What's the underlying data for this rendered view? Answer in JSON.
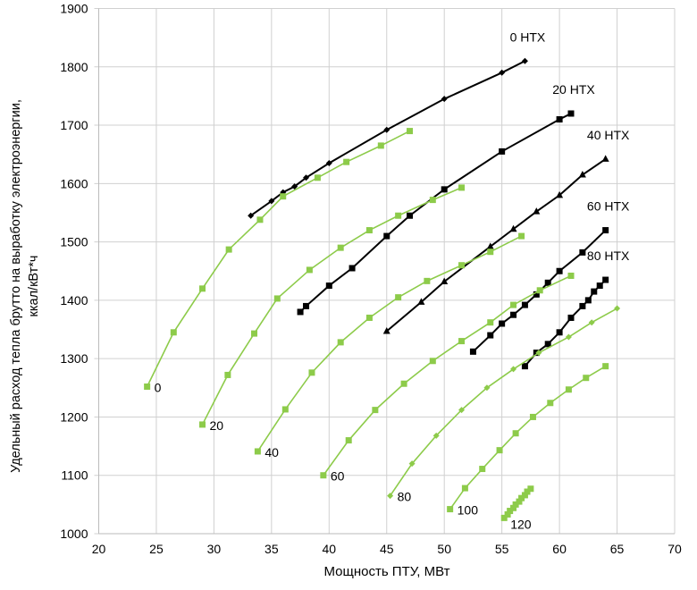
{
  "chart_data": {
    "type": "line",
    "xlabel": "Мощность ПТУ, МВт",
    "ylabel_lines": [
      "Удельный расход тепла брутто на выработку электроэнергии,",
      "ккал/кВт*ч"
    ],
    "xlim": [
      20,
      70
    ],
    "ylim": [
      1000,
      1900
    ],
    "xticks": [
      20,
      25,
      30,
      35,
      40,
      45,
      50,
      55,
      60,
      65,
      70
    ],
    "yticks": [
      1000,
      1100,
      1200,
      1300,
      1400,
      1500,
      1600,
      1700,
      1800,
      1900
    ],
    "grid": true,
    "colors": {
      "black": "#000000",
      "green": "#8DCB4A",
      "grid": "#D0D0D0"
    },
    "series": [
      {
        "name": "0 НТХ",
        "color": "black",
        "marker": "diamond",
        "points": [
          [
            33.2,
            1545
          ],
          [
            35,
            1570
          ],
          [
            36,
            1585
          ],
          [
            37,
            1595
          ],
          [
            38,
            1610
          ],
          [
            40,
            1635
          ],
          [
            45,
            1692
          ],
          [
            50,
            1745
          ],
          [
            55,
            1790
          ],
          [
            57,
            1810
          ]
        ]
      },
      {
        "name": "20 НТХ",
        "color": "black",
        "marker": "square",
        "points": [
          [
            37.5,
            1380
          ],
          [
            38,
            1390
          ],
          [
            40,
            1425
          ],
          [
            42,
            1455
          ],
          [
            45,
            1510
          ],
          [
            47,
            1545
          ],
          [
            50,
            1590
          ],
          [
            55,
            1655
          ],
          [
            60,
            1710
          ],
          [
            61,
            1720
          ]
        ]
      },
      {
        "name": "40 НТХ",
        "color": "black",
        "marker": "triangle",
        "points": [
          [
            45,
            1347
          ],
          [
            48,
            1397
          ],
          [
            50,
            1432
          ],
          [
            54,
            1492
          ],
          [
            56,
            1522
          ],
          [
            58,
            1552
          ],
          [
            60,
            1580
          ],
          [
            62,
            1615
          ],
          [
            64,
            1642
          ]
        ]
      },
      {
        "name": "60 НТХ",
        "color": "black",
        "marker": "square",
        "points": [
          [
            52.5,
            1312
          ],
          [
            54,
            1340
          ],
          [
            55,
            1360
          ],
          [
            56,
            1375
          ],
          [
            57,
            1392
          ],
          [
            58,
            1410
          ],
          [
            59,
            1430
          ],
          [
            60,
            1450
          ],
          [
            62,
            1482
          ],
          [
            64,
            1520
          ]
        ]
      },
      {
        "name": "80 НТХ",
        "color": "black",
        "marker": "square",
        "points": [
          [
            57,
            1287
          ],
          [
            58,
            1310
          ],
          [
            59,
            1325
          ],
          [
            60,
            1345
          ],
          [
            61,
            1370
          ],
          [
            62,
            1390
          ],
          [
            62.5,
            1400
          ],
          [
            63,
            1415
          ],
          [
            63.5,
            1425
          ],
          [
            64,
            1435
          ]
        ]
      },
      {
        "name": "0",
        "color": "green",
        "marker": "square",
        "points": [
          [
            24.2,
            1252
          ],
          [
            26.5,
            1345
          ],
          [
            29,
            1420
          ],
          [
            31.3,
            1487
          ],
          [
            34,
            1538
          ],
          [
            36,
            1578
          ],
          [
            39,
            1610
          ],
          [
            41.5,
            1637
          ],
          [
            44.5,
            1665
          ],
          [
            47,
            1690
          ]
        ]
      },
      {
        "name": "20",
        "color": "green",
        "marker": "square",
        "points": [
          [
            29,
            1187
          ],
          [
            31.2,
            1272
          ],
          [
            33.5,
            1343
          ],
          [
            35.5,
            1403
          ],
          [
            38.3,
            1452
          ],
          [
            41,
            1490
          ],
          [
            43.5,
            1520
          ],
          [
            46,
            1545
          ],
          [
            49,
            1572
          ],
          [
            51.5,
            1593
          ]
        ]
      },
      {
        "name": "40",
        "color": "green",
        "marker": "square",
        "points": [
          [
            33.8,
            1141
          ],
          [
            36.2,
            1213
          ],
          [
            38.5,
            1276
          ],
          [
            41,
            1328
          ],
          [
            43.5,
            1370
          ],
          [
            46,
            1405
          ],
          [
            48.5,
            1433
          ],
          [
            51.5,
            1460
          ],
          [
            54,
            1483
          ],
          [
            56.7,
            1510
          ]
        ]
      },
      {
        "name": "60",
        "color": "green",
        "marker": "square",
        "points": [
          [
            39.5,
            1100
          ],
          [
            41.7,
            1160
          ],
          [
            44,
            1212
          ],
          [
            46.5,
            1257
          ],
          [
            49,
            1296
          ],
          [
            51.5,
            1330
          ],
          [
            54,
            1362
          ],
          [
            56,
            1392
          ],
          [
            58.3,
            1417
          ],
          [
            61,
            1442
          ]
        ]
      },
      {
        "name": "80",
        "color": "green",
        "marker": "diamond",
        "points": [
          [
            45.3,
            1065
          ],
          [
            47.2,
            1120
          ],
          [
            49.3,
            1168
          ],
          [
            51.5,
            1212
          ],
          [
            53.7,
            1250
          ],
          [
            56,
            1282
          ],
          [
            58.2,
            1310
          ],
          [
            60.8,
            1337
          ],
          [
            62.8,
            1362
          ],
          [
            65,
            1386
          ]
        ]
      },
      {
        "name": "100",
        "color": "green",
        "marker": "square",
        "points": [
          [
            50.5,
            1042
          ],
          [
            51.8,
            1078
          ],
          [
            53.3,
            1111
          ],
          [
            54.8,
            1143
          ],
          [
            56.2,
            1172
          ],
          [
            57.7,
            1200
          ],
          [
            59.2,
            1224
          ],
          [
            60.8,
            1247
          ],
          [
            62.3,
            1267
          ],
          [
            64,
            1287
          ]
        ]
      },
      {
        "name": "120",
        "color": "green",
        "marker": "square",
        "points": [
          [
            55.2,
            1027
          ],
          [
            55.5,
            1033
          ],
          [
            55.7,
            1039
          ],
          [
            56,
            1044
          ],
          [
            56.2,
            1050
          ],
          [
            56.5,
            1055
          ],
          [
            56.7,
            1061
          ],
          [
            57,
            1066
          ],
          [
            57.2,
            1072
          ],
          [
            57.5,
            1077
          ]
        ]
      }
    ]
  }
}
